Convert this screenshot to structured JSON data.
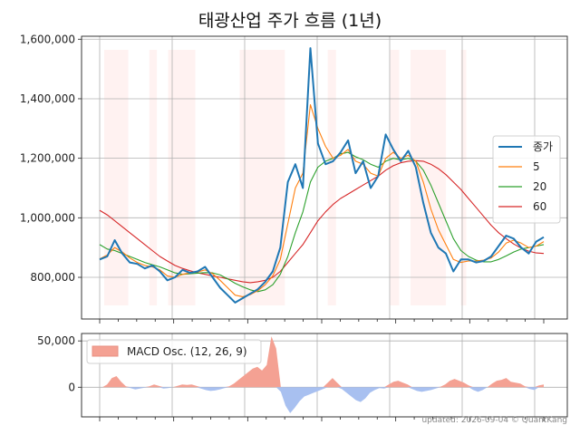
{
  "chart_data": [
    {
      "type": "line",
      "title": "태광산업 주가 흐름 (1년)",
      "xlabel": "",
      "ylabel": "",
      "ylim": [
        660000,
        1610000
      ],
      "yticks": [
        800000,
        1000000,
        1200000,
        1400000,
        1600000
      ],
      "ytick_labels": [
        "800,000",
        "1,000,000",
        "1,200,000",
        "1,400,000",
        "1,600,000"
      ],
      "grid": true,
      "legend_position": "right",
      "series": [
        {
          "name": "종가",
          "color": "#1f77b4",
          "values": [
            860000,
            870000,
            925000,
            880000,
            850000,
            845000,
            830000,
            840000,
            820000,
            790000,
            800000,
            825000,
            815000,
            820000,
            835000,
            800000,
            765000,
            740000,
            715000,
            730000,
            745000,
            760000,
            785000,
            820000,
            900000,
            1120000,
            1180000,
            1100000,
            1570000,
            1250000,
            1180000,
            1190000,
            1220000,
            1260000,
            1150000,
            1190000,
            1100000,
            1140000,
            1280000,
            1230000,
            1190000,
            1225000,
            1170000,
            1050000,
            950000,
            900000,
            880000,
            820000,
            860000,
            860000,
            850000,
            855000,
            870000,
            905000,
            940000,
            930000,
            900000,
            880000,
            920000,
            935000
          ]
        },
        {
          "name": "5",
          "color": "#ff7f0e",
          "values": [
            862000,
            875000,
            900000,
            885000,
            865000,
            850000,
            840000,
            835000,
            825000,
            805000,
            800000,
            810000,
            815000,
            818000,
            825000,
            812000,
            790000,
            765000,
            740000,
            735000,
            742000,
            755000,
            775000,
            805000,
            860000,
            980000,
            1100000,
            1150000,
            1380000,
            1300000,
            1240000,
            1200000,
            1210000,
            1230000,
            1190000,
            1180000,
            1150000,
            1140000,
            1200000,
            1220000,
            1200000,
            1210000,
            1190000,
            1120000,
            1030000,
            960000,
            910000,
            860000,
            850000,
            855000,
            855000,
            858000,
            865000,
            885000,
            915000,
            925000,
            915000,
            900000,
            905000,
            920000
          ]
        },
        {
          "name": "20",
          "color": "#2ca02c",
          "values": [
            910000,
            895000,
            890000,
            880000,
            870000,
            860000,
            850000,
            842000,
            835000,
            825000,
            815000,
            810000,
            812000,
            814000,
            816000,
            815000,
            808000,
            795000,
            780000,
            768000,
            758000,
            752000,
            758000,
            775000,
            810000,
            870000,
            950000,
            1020000,
            1120000,
            1170000,
            1190000,
            1200000,
            1215000,
            1220000,
            1205000,
            1195000,
            1180000,
            1170000,
            1190000,
            1200000,
            1195000,
            1200000,
            1190000,
            1160000,
            1110000,
            1050000,
            990000,
            930000,
            890000,
            870000,
            858000,
            852000,
            852000,
            860000,
            872000,
            885000,
            895000,
            900000,
            905000,
            910000
          ]
        },
        {
          "name": "60",
          "color": "#d62728",
          "values": [
            1025000,
            1010000,
            990000,
            970000,
            950000,
            930000,
            910000,
            890000,
            870000,
            855000,
            840000,
            830000,
            822000,
            815000,
            810000,
            805000,
            800000,
            795000,
            790000,
            785000,
            782000,
            785000,
            790000,
            800000,
            820000,
            850000,
            880000,
            910000,
            950000,
            990000,
            1020000,
            1045000,
            1065000,
            1080000,
            1095000,
            1110000,
            1125000,
            1140000,
            1160000,
            1175000,
            1185000,
            1190000,
            1192000,
            1190000,
            1180000,
            1165000,
            1145000,
            1120000,
            1095000,
            1065000,
            1035000,
            1005000,
            975000,
            950000,
            930000,
            912000,
            898000,
            888000,
            882000,
            880000
          ]
        }
      ],
      "highlight_bands": [
        [
          0.6,
          3.8
        ],
        [
          6.6,
          7.6
        ],
        [
          9.1,
          12.7
        ],
        [
          18.6,
          24.6
        ],
        [
          30.3,
          31.4
        ],
        [
          38.6,
          39.8
        ],
        [
          41.3,
          46.0
        ],
        [
          48.0,
          48.7
        ]
      ]
    },
    {
      "type": "area",
      "title": "",
      "ylim": [
        -32000,
        58000
      ],
      "yticks": [
        0,
        50000
      ],
      "ytick_labels": [
        "0",
        "50,000"
      ],
      "grid": true,
      "legend_position": "top-left",
      "series": [
        {
          "name": "MACD Osc. (12, 26, 9)",
          "positive_color": "#f4a193",
          "negative_color": "#a8c0f0",
          "values": [
            0,
            3000,
            10000,
            12000,
            6000,
            1000,
            -1000,
            -2500,
            -1500,
            -500,
            1000,
            3000,
            1500,
            -1500,
            -1000,
            0,
            1500,
            3000,
            2500,
            3000,
            1500,
            -1500,
            -3000,
            -4000,
            -3500,
            -2500,
            -1000,
            1000,
            4000,
            8000,
            12000,
            16000,
            20000,
            22000,
            18000,
            24000,
            55000,
            42000,
            -5000,
            -20000,
            -28000,
            -22000,
            -15000,
            -10000,
            -8000,
            -6000,
            -4000,
            -2000,
            5000,
            10000,
            5000,
            -2000,
            -6000,
            -10000,
            -14000,
            -16000,
            -12000,
            -6000,
            -3000,
            -1000,
            -1500,
            3000,
            6000,
            7000,
            5000,
            3000,
            -2000,
            -4000,
            -5000,
            -4000,
            -3000,
            -1500,
            500,
            3000,
            7000,
            9000,
            7000,
            5000,
            2000,
            -3000,
            -5000,
            -3000,
            0,
            4000,
            7000,
            8000,
            10000,
            6000,
            5000,
            4000,
            1000,
            -2000,
            -3000,
            2000,
            3000
          ]
        }
      ]
    }
  ],
  "footer": "updated: 2026-09-04 © QuantKang"
}
